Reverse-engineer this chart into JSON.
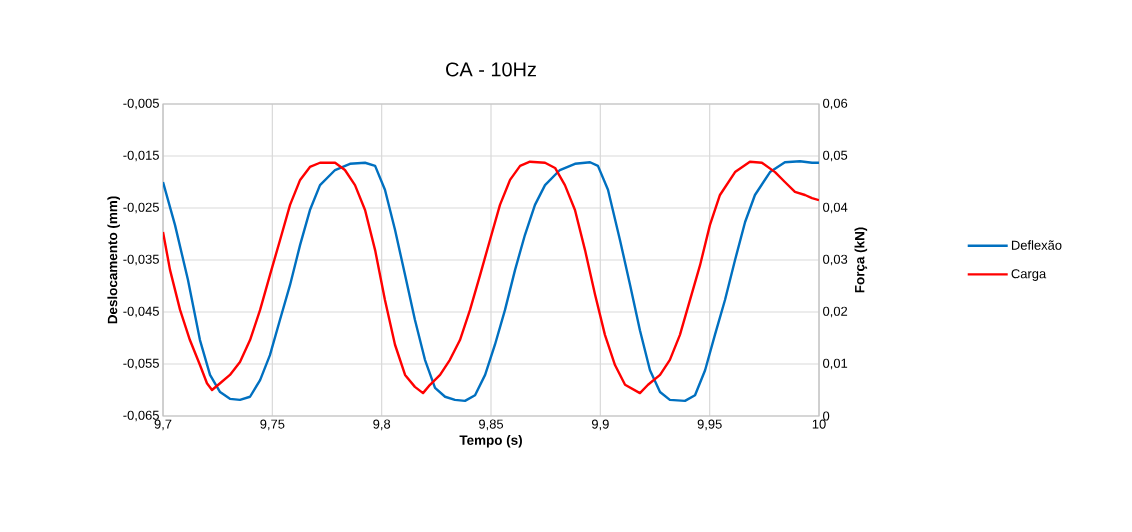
{
  "chart_data": {
    "type": "line",
    "title": "CA - 10Hz",
    "xlabel": "Tempo (s)",
    "ylabel": "Deslocamento (mm)",
    "y2label": "Força (kN)",
    "xlim": [
      9.7,
      10
    ],
    "xticks": [
      {
        "value": 9.7,
        "label": "9,7"
      },
      {
        "value": 9.75,
        "label": "9,75"
      },
      {
        "value": 9.8,
        "label": "9,8"
      },
      {
        "value": 9.85,
        "label": "9,85"
      },
      {
        "value": 9.9,
        "label": "9,9"
      },
      {
        "value": 9.95,
        "label": "9,95"
      },
      {
        "value": 10,
        "label": "10"
      }
    ],
    "ylim": [
      -0.065,
      -0.005
    ],
    "yticks": [
      {
        "value": -0.065,
        "label": "-0,065"
      },
      {
        "value": -0.055,
        "label": "-0,055"
      },
      {
        "value": -0.045,
        "label": "-0,045"
      },
      {
        "value": -0.035,
        "label": "-0,035"
      },
      {
        "value": -0.025,
        "label": "-0,025"
      },
      {
        "value": -0.015,
        "label": "-0,015"
      },
      {
        "value": -0.005,
        "label": "-0,005"
      }
    ],
    "y2lim": [
      0,
      0.06
    ],
    "y2ticks": [
      0,
      {
        "value": 0.01,
        "label": "0,01"
      },
      {
        "value": 0.02,
        "label": "0,02"
      },
      {
        "value": 0.03,
        "label": "0,03"
      },
      {
        "value": 0.04,
        "label": "0,04"
      },
      {
        "value": 0.05,
        "label": "0,05"
      },
      {
        "value": 0.06,
        "label": "0,06"
      }
    ],
    "grid": true,
    "legend": "right",
    "marker": "none",
    "line_style": "solid",
    "series": [
      {
        "name": "Deflexão",
        "color": "#0070c0",
        "x": [
          9.7,
          9.7055,
          9.7114,
          9.7169,
          9.7215,
          9.7261,
          9.7306,
          9.7352,
          9.7398,
          9.7444,
          9.7489,
          9.7535,
          9.7581,
          9.7627,
          9.7672,
          9.7718,
          9.7787,
          9.7855,
          9.7924,
          9.797,
          9.8015,
          9.8061,
          9.8107,
          9.8152,
          9.8198,
          9.8244,
          9.829,
          9.8335,
          9.8381,
          9.8427,
          9.8473,
          9.8518,
          9.8564,
          9.861,
          9.8655,
          9.8701,
          9.8747,
          9.8815,
          9.8884,
          9.8953,
          9.8989,
          9.9035,
          9.909,
          9.9136,
          9.9181,
          9.9227,
          9.9273,
          9.9318,
          9.9387,
          9.9433,
          9.9479,
          9.9524,
          9.957,
          9.9616,
          9.9662,
          9.9707,
          9.9776,
          9.9844,
          9.9913,
          9.9968,
          10
        ],
        "values": [
          -0.02,
          -0.0283,
          -0.0388,
          -0.0504,
          -0.0571,
          -0.0604,
          -0.0617,
          -0.0619,
          -0.0613,
          -0.0581,
          -0.0533,
          -0.0465,
          -0.0398,
          -0.0321,
          -0.0254,
          -0.0206,
          -0.0177,
          -0.0165,
          -0.0163,
          -0.0169,
          -0.0215,
          -0.0292,
          -0.0379,
          -0.0465,
          -0.0542,
          -0.0596,
          -0.0613,
          -0.0619,
          -0.0621,
          -0.061,
          -0.0571,
          -0.0513,
          -0.0446,
          -0.0369,
          -0.0302,
          -0.0244,
          -0.0206,
          -0.0177,
          -0.0165,
          -0.0162,
          -0.0169,
          -0.0215,
          -0.0312,
          -0.0398,
          -0.0485,
          -0.0562,
          -0.0604,
          -0.0619,
          -0.0621,
          -0.061,
          -0.0562,
          -0.0494,
          -0.0427,
          -0.035,
          -0.0277,
          -0.0225,
          -0.0181,
          -0.0162,
          -0.016,
          -0.0163,
          -0.0163
        ]
      },
      {
        "name": "Carga",
        "color": "#ff0000",
        "axis": "y2",
        "x": [
          9.7,
          9.7032,
          9.7078,
          9.7123,
          9.7169,
          9.7201,
          9.7224,
          9.7261,
          9.7306,
          9.7352,
          9.7398,
          9.7444,
          9.7489,
          9.7535,
          9.7581,
          9.7627,
          9.7672,
          9.7718,
          9.7787,
          9.7832,
          9.7878,
          9.7924,
          9.797,
          9.8015,
          9.8061,
          9.8107,
          9.8152,
          9.8189,
          9.8221,
          9.8267,
          9.8312,
          9.8358,
          9.8404,
          9.845,
          9.8495,
          9.8541,
          9.8587,
          9.8633,
          9.8678,
          9.8747,
          9.8793,
          9.8838,
          9.8884,
          9.893,
          9.8976,
          9.9021,
          9.9067,
          9.9113,
          9.9181,
          9.9218,
          9.9273,
          9.9318,
          9.9364,
          9.941,
          9.9456,
          9.9501,
          9.9547,
          9.9616,
          9.9684,
          9.9739,
          9.9799,
          9.9844,
          9.989,
          9.9936,
          9.9968,
          10
        ],
        "values": [
          0.0354,
          0.0281,
          0.0204,
          0.0146,
          0.0098,
          0.0063,
          0.005,
          0.0063,
          0.0079,
          0.0104,
          0.0146,
          0.0204,
          0.0271,
          0.0338,
          0.0406,
          0.0454,
          0.0479,
          0.0487,
          0.0487,
          0.0473,
          0.0444,
          0.0396,
          0.0319,
          0.0223,
          0.0137,
          0.0079,
          0.0056,
          0.0044,
          0.006,
          0.0079,
          0.0108,
          0.0146,
          0.0204,
          0.0271,
          0.0338,
          0.0406,
          0.0454,
          0.0481,
          0.0489,
          0.0487,
          0.0477,
          0.0444,
          0.0396,
          0.0319,
          0.0233,
          0.0156,
          0.0098,
          0.006,
          0.0044,
          0.006,
          0.0079,
          0.0108,
          0.0156,
          0.0223,
          0.029,
          0.0367,
          0.0425,
          0.0469,
          0.0489,
          0.0487,
          0.0469,
          0.045,
          0.0431,
          0.0425,
          0.0419,
          0.0415
        ]
      }
    ]
  }
}
